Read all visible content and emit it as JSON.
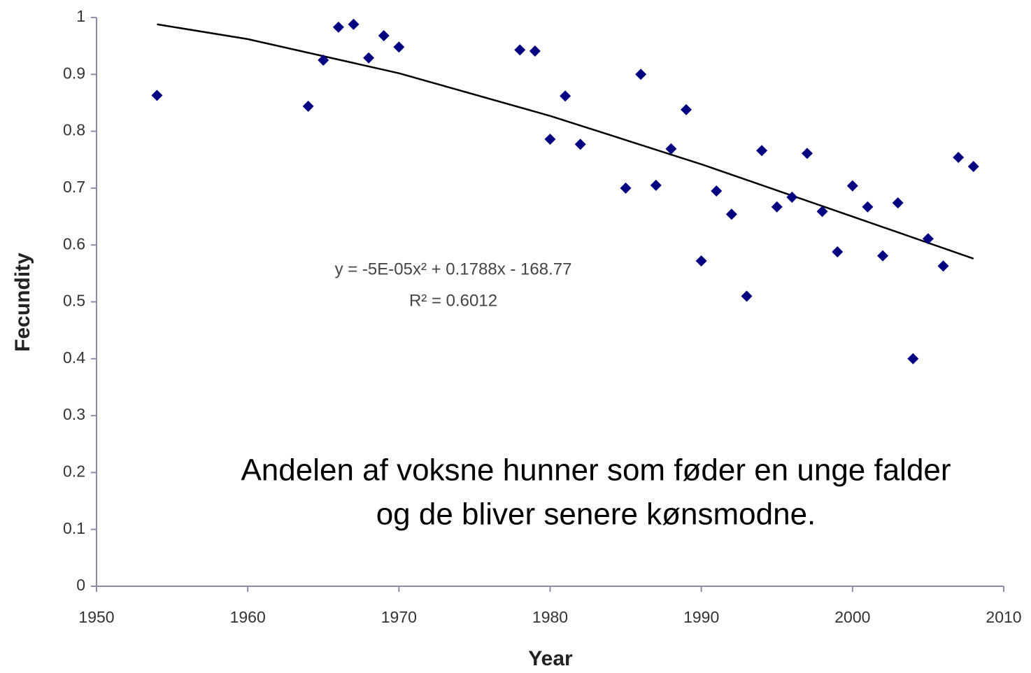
{
  "chart_data": {
    "type": "scatter",
    "xlabel": "Year",
    "ylabel": "Fecundity",
    "xlim": [
      1950,
      2010
    ],
    "xticks": [
      1950,
      1960,
      1970,
      1980,
      1990,
      2000,
      2010
    ],
    "ylim": [
      0,
      1
    ],
    "yticks": [
      0,
      0.1,
      0.2,
      0.3,
      0.4,
      0.5,
      0.6,
      0.7,
      0.8,
      0.9,
      1
    ],
    "points": {
      "color": "#000080",
      "x": [
        1954,
        1964,
        1965,
        1966,
        1967,
        1968,
        1969,
        1970,
        1978,
        1979,
        1980,
        1981,
        1982,
        1985,
        1986,
        1987,
        1988,
        1989,
        1990,
        1991,
        1992,
        1993,
        1994,
        1995,
        1996,
        1997,
        1998,
        1999,
        2000,
        2001,
        2002,
        2003,
        2004,
        2005,
        2006,
        2007,
        2008
      ],
      "values": [
        0.863,
        0.844,
        0.925,
        0.983,
        0.988,
        0.929,
        0.968,
        0.948,
        0.943,
        0.941,
        0.786,
        0.862,
        0.777,
        0.7,
        0.9,
        0.705,
        0.769,
        0.838,
        0.572,
        0.695,
        0.654,
        0.51,
        0.766,
        0.667,
        0.684,
        0.761,
        0.659,
        0.588,
        0.704,
        0.667,
        0.581,
        0.674,
        0.4,
        0.611,
        0.563,
        0.754,
        0.738
      ]
    },
    "trendline": {
      "color": "#000000",
      "x": [
        1954,
        1960,
        1970,
        1980,
        1990,
        2000,
        2008
      ],
      "values": [
        0.988,
        0.962,
        0.902,
        0.827,
        0.742,
        0.65,
        0.576
      ]
    },
    "annotations": [
      "y = -5E-05x² + 0.1788x - 168.77",
      "R² = 0.6012"
    ],
    "caption": [
      "Andelen af voksne hunner som føder en unge falder",
      "og de bliver senere kønsmodne."
    ]
  }
}
